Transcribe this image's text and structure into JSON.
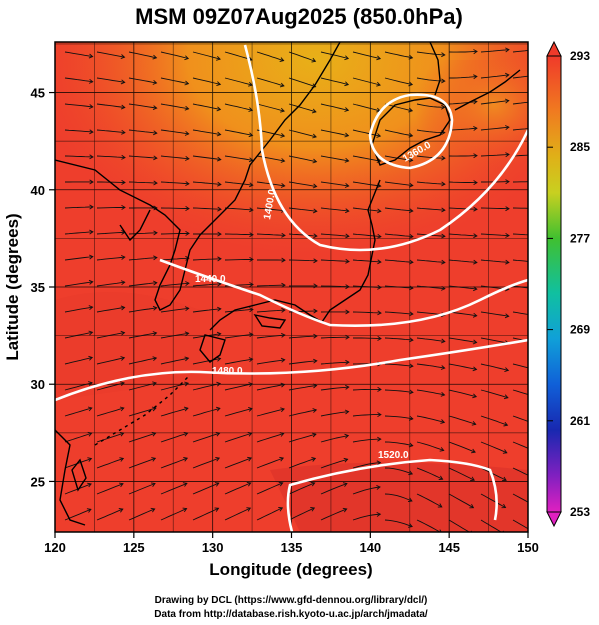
{
  "title": "MSM 09Z07Aug2025 (850.0hPa)",
  "xlabel": "Longitude (degrees)",
  "ylabel": "Latitude  (degrees)",
  "x_ticks": [
    "120",
    "125",
    "130",
    "135",
    "140",
    "145",
    "150"
  ],
  "y_ticks": [
    "25",
    "30",
    "35",
    "40",
    "45"
  ],
  "colorbar": {
    "min": 253,
    "max": 293,
    "ticks": [
      "293",
      "285",
      "277",
      "269",
      "261",
      "253"
    ]
  },
  "contours": [
    {
      "label": "1360.0"
    },
    {
      "label": "1400.0"
    },
    {
      "label": "1440.0"
    },
    {
      "label": "1480.0"
    },
    {
      "label": "1520.0"
    }
  ],
  "credits": {
    "line1": "Drawing by DCL (https://www.gfd-dennou.org/library/dcl/)",
    "line2": "Data from http://database.rish.kyoto-u.ac.jp/arch/jmadata/"
  },
  "chart_data": {
    "type": "heatmap",
    "title": "MSM 09Z07Aug2025 (850.0hPa)",
    "xlabel": "Longitude (degrees)",
    "ylabel": "Latitude  (degrees)",
    "xlim": [
      120,
      150
    ],
    "ylim": [
      22.4,
      47.6
    ],
    "colorbar_range": [
      253,
      293
    ],
    "contour_values": [
      1360.0,
      1400.0,
      1440.0,
      1480.0,
      1520.0
    ],
    "colors": {
      "warm_red": "#f0402a",
      "orange": "#f08a1e",
      "yellow_orange": "#e8a81a",
      "contour": "#ffffff",
      "coast": "#000000"
    }
  }
}
